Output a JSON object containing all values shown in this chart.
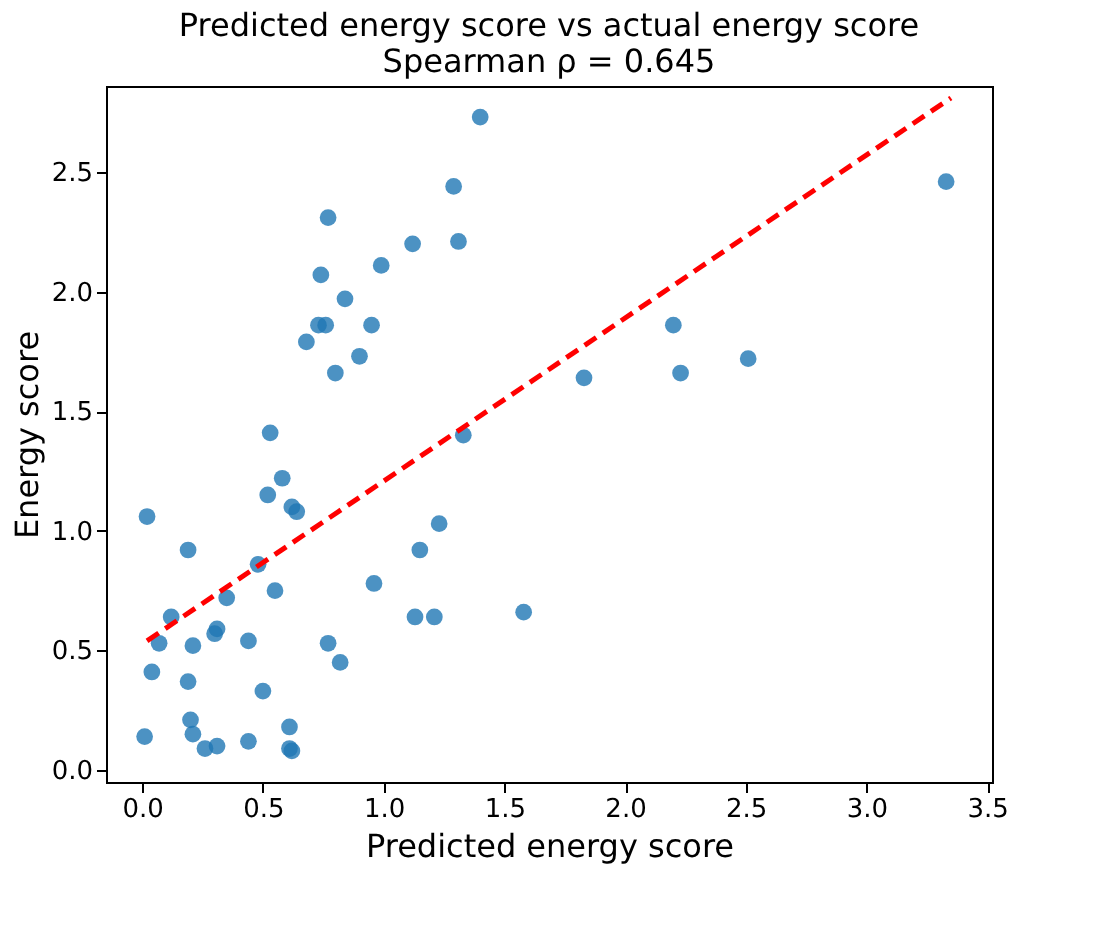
{
  "chart_data": {
    "type": "scatter",
    "title": [
      "Predicted energy score vs actual energy score",
      "Spearman ρ = 0.645"
    ],
    "xlabel": "Predicted energy score",
    "ylabel": "Energy score",
    "xlim": [
      -0.15,
      3.52
    ],
    "ylim": [
      -0.05,
      2.86
    ],
    "xticks": [
      {
        "value": 0,
        "label": "0.0"
      },
      {
        "value": 0.5,
        "label": "0.5"
      },
      {
        "value": 1,
        "label": "1.0"
      },
      {
        "value": 1.5,
        "label": "1.5"
      },
      {
        "value": 2,
        "label": "2.0"
      },
      {
        "value": 2.5,
        "label": "2.5"
      },
      {
        "value": 3,
        "label": "3.0"
      },
      {
        "value": 3.5,
        "label": "3.5"
      }
    ],
    "yticks": [
      {
        "value": 0,
        "label": "0.0"
      },
      {
        "value": 0.5,
        "label": "0.5"
      },
      {
        "value": 1,
        "label": "1.0"
      },
      {
        "value": 1.5,
        "label": "1.5"
      },
      {
        "value": 2,
        "label": "2.0"
      },
      {
        "value": 2.5,
        "label": "2.5"
      }
    ],
    "grid": false,
    "series": [
      {
        "marker": "circle",
        "color": "#1f77b4",
        "x": [
          1.4,
          1.29,
          0.77,
          1.31,
          1.12,
          0.99,
          0.74,
          0.84,
          0.73,
          0.76,
          0.95,
          0.68,
          0.9,
          0.8,
          0.53,
          1.33,
          3.33,
          2.2,
          1.83,
          2.23,
          2.51,
          0.58,
          0.52,
          0.62,
          0.64,
          0.02,
          1.23,
          1.15,
          0.19,
          0.48,
          0.96,
          0.55,
          0.35,
          0.12,
          1.13,
          1.21,
          1.58,
          0.31,
          0.3,
          0.07,
          0.21,
          0.44,
          0.77,
          0.82,
          0.04,
          0.19,
          0.5,
          0.2,
          0.61,
          0.01,
          0.21,
          0.44,
          0.26,
          0.31,
          0.61,
          0.62
        ],
        "values": [
          2.73,
          2.44,
          2.31,
          2.21,
          2.2,
          2.11,
          2.07,
          1.97,
          1.86,
          1.86,
          1.86,
          1.79,
          1.73,
          1.66,
          1.41,
          1.4,
          2.46,
          1.86,
          1.64,
          1.66,
          1.72,
          1.22,
          1.15,
          1.1,
          1.08,
          1.06,
          1.03,
          0.92,
          0.92,
          0.86,
          0.78,
          0.75,
          0.72,
          0.64,
          0.64,
          0.64,
          0.66,
          0.59,
          0.57,
          0.53,
          0.52,
          0.54,
          0.53,
          0.45,
          0.41,
          0.37,
          0.33,
          0.21,
          0.18,
          0.14,
          0.15,
          0.12,
          0.09,
          0.1,
          0.09,
          0.08
        ]
      },
      {
        "type": "line",
        "marker": "none",
        "color": "#ff0000",
        "line_style": "dashed",
        "x": [
          0.02,
          3.35
        ],
        "values": [
          0.54,
          2.81
        ]
      }
    ]
  }
}
